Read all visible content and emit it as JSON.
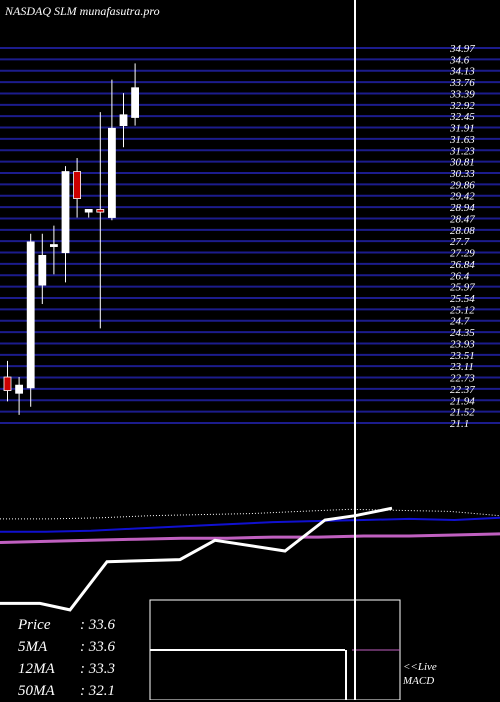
{
  "header": {
    "title": "NASDAQ SLM munafasutra.pro"
  },
  "stats": {
    "rows": [
      {
        "label": "Price",
        "value": ": 33.6"
      },
      {
        "label": "5MA",
        "value": ": 33.6"
      },
      {
        "label": "12MA",
        "value": ": 33.3"
      },
      {
        "label": "50MA",
        "value": ": 32.1"
      }
    ]
  },
  "macd": {
    "line1": "<<Live",
    "line2": "MACD"
  },
  "chart_data": {
    "type": "candlestick",
    "y_axis": {
      "labels": [
        "34.97",
        "34.6",
        "34.13",
        "33.76",
        "33.39",
        "32.92",
        "32.45",
        "31.91",
        "31.63",
        "31.23",
        "30.81",
        "30.33",
        "29.86",
        "29.42",
        "28.94",
        "28.47",
        "28.08",
        "27.7",
        "27.29",
        "26.84",
        "26.4",
        "25.97",
        "25.54",
        "25.12",
        "24.7",
        "24.35",
        "23.93",
        "23.51",
        "23.11",
        "22.73",
        "22.37",
        "21.94",
        "21.52",
        "21.1"
      ],
      "ylim": [
        21.1,
        34.97
      ]
    },
    "candles": [
      {
        "open": 22.8,
        "high": 23.4,
        "low": 21.9,
        "close": 22.3
      },
      {
        "open": 22.2,
        "high": 22.8,
        "low": 21.4,
        "close": 22.5
      },
      {
        "open": 22.4,
        "high": 28.1,
        "low": 21.7,
        "close": 27.8
      },
      {
        "open": 26.2,
        "high": 28.1,
        "low": 25.5,
        "close": 27.3
      },
      {
        "open": 27.7,
        "high": 28.4,
        "low": 26.6,
        "close": 27.7
      },
      {
        "open": 27.4,
        "high": 30.6,
        "low": 26.3,
        "close": 30.4
      },
      {
        "open": 30.4,
        "high": 30.9,
        "low": 28.7,
        "close": 29.4
      },
      {
        "open": 28.9,
        "high": 29.0,
        "low": 28.7,
        "close": 29.0
      },
      {
        "open": 29.0,
        "high": 32.6,
        "low": 24.6,
        "close": 28.9
      },
      {
        "open": 28.7,
        "high": 33.8,
        "low": 28.6,
        "close": 32.0
      },
      {
        "open": 32.1,
        "high": 33.3,
        "low": 31.3,
        "close": 32.5
      },
      {
        "open": 32.4,
        "high": 34.4,
        "low": 32.1,
        "close": 33.5
      }
    ],
    "lower_panel": {
      "price_line": [
        0.74,
        0.74,
        0.8,
        0.45,
        0.43,
        0.28,
        0.32,
        0.36,
        0.11,
        0.08,
        0.0
      ],
      "ma_short_line": [
        0.25,
        0.25,
        0.24,
        0.22,
        0.2,
        0.18,
        0.16,
        0.15,
        0.14,
        0.13,
        0.14,
        0.12
      ],
      "ma_long_line": [
        0.35,
        0.34,
        0.33,
        0.32,
        0.31,
        0.31,
        0.3,
        0.3,
        0.29,
        0.29,
        0.28,
        0.27
      ],
      "dotted_line": [
        0.13,
        0.13,
        0.12,
        0.1,
        0.09,
        0.08,
        0.06,
        0.04,
        0.05,
        0.06,
        0.1
      ]
    },
    "colors": {
      "background": "#000000",
      "grid": "#1c1c8c",
      "up_candle": "#ffffff",
      "down_candle": "#cc0000",
      "wick": "#ffffff",
      "ma_short": "#1010d0",
      "ma_long": "#c060c0",
      "price_line": "#ffffff",
      "cursor": "#ffffff"
    }
  }
}
